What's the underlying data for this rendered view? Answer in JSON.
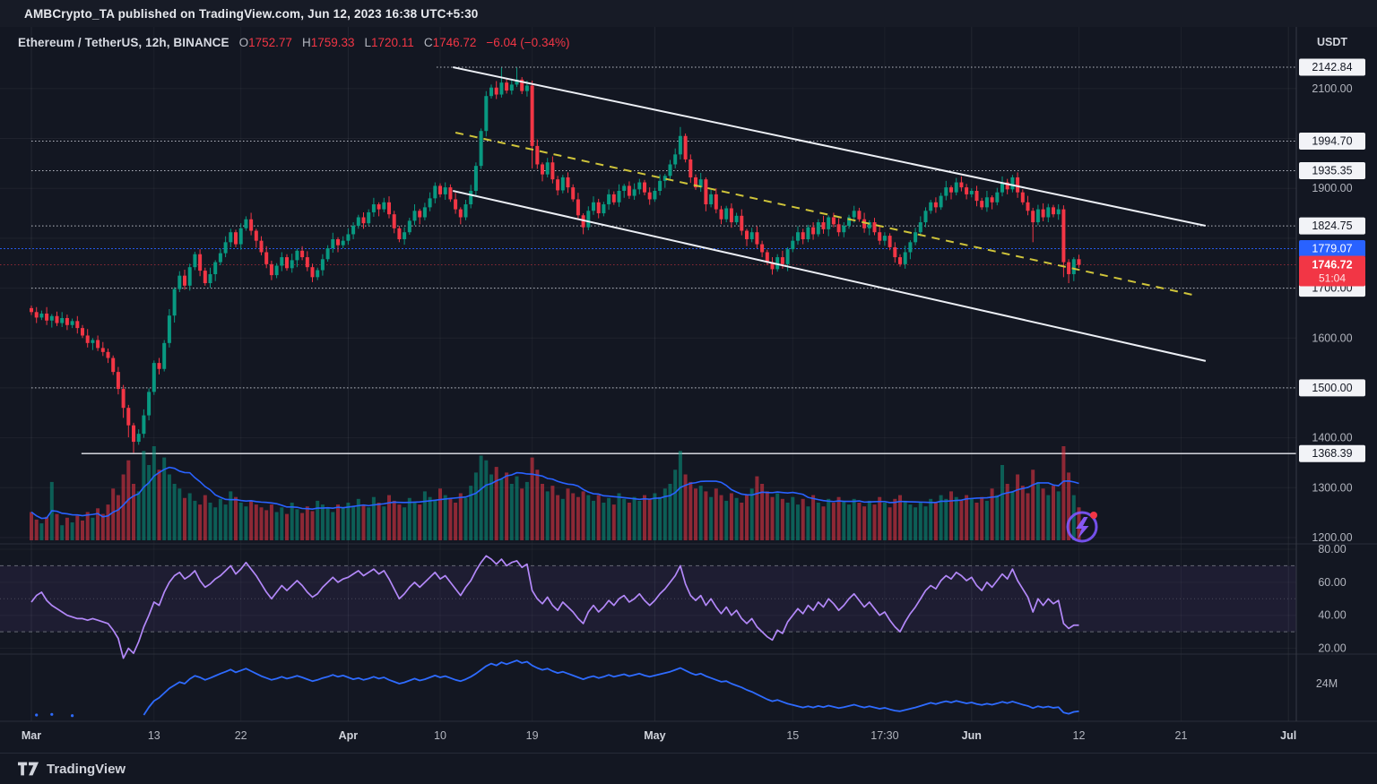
{
  "topbar": {
    "text": "AMBCrypto_TA published on TradingView.com, Jun 12, 2023 16:38 UTC+5:30"
  },
  "legend": {
    "title": "Ethereum / TetherUS, 12h, BINANCE",
    "o_label": "O",
    "o": "1752.77",
    "h_label": "H",
    "h": "1759.33",
    "l_label": "L",
    "l": "1720.11",
    "c_label": "C",
    "c": "1746.72",
    "change": "−6.04 (−0.34%)"
  },
  "price_axis": {
    "currency": "USDT"
  },
  "footer": {
    "brand": "TradingView"
  },
  "watermark": {
    "circle_color": "#7e57ff",
    "bolt_color": "#8c5cff",
    "dot_color": "#f23645"
  },
  "chart_data": {
    "type": "candlestick",
    "title": "Ethereum / TetherUS 12h BINANCE",
    "price_gridlines": [
      2100,
      2000,
      1900,
      1800,
      1700,
      1600,
      1500,
      1400,
      1300,
      1200
    ],
    "axis_ticks_gray": [
      "2100.00",
      "1900.00",
      "1600.00",
      "1400.00",
      "1300.00",
      "1200.00"
    ],
    "axis_ticks_gray_values": [
      2100,
      1900,
      1600,
      1400,
      1300,
      1200
    ],
    "levels": [
      {
        "price": 2142.84,
        "label": "2142.84",
        "from_index": 79.3,
        "style": "dotted",
        "badge": "white"
      },
      {
        "price": 1994.7,
        "label": "1994.70",
        "from_index": 0,
        "style": "dotted",
        "badge": "white"
      },
      {
        "price": 1935.35,
        "label": "1935.35",
        "from_index": 0,
        "style": "dotted",
        "badge": "white"
      },
      {
        "price": 1824.75,
        "label": "1824.75",
        "from_index": 0,
        "style": "dotted",
        "badge": "white"
      },
      {
        "price": 1700.0,
        "label": "1700.00",
        "from_index": 0,
        "style": "dotted",
        "badge": "white"
      },
      {
        "price": 1500.0,
        "label": "1500.00",
        "from_index": 0,
        "style": "dotted",
        "badge": "white"
      },
      {
        "price": 1368.39,
        "label": "1368.39",
        "from_index": 9.8,
        "style": "solid",
        "badge": "white"
      }
    ],
    "blue_level": {
      "price": 1779.07,
      "label": "1779.07",
      "color": "#2962ff"
    },
    "current_price": {
      "price": 1746.72,
      "label": "1746.72",
      "countdown": "51:04",
      "color": "#f23645"
    },
    "time_ticks": [
      {
        "label": "Mar",
        "i": 0,
        "month": true
      },
      {
        "label": "13",
        "i": 24,
        "month": false
      },
      {
        "label": "22",
        "i": 41,
        "month": false
      },
      {
        "label": "Apr",
        "i": 62,
        "month": true
      },
      {
        "label": "10",
        "i": 80,
        "month": false
      },
      {
        "label": "19",
        "i": 98,
        "month": false
      },
      {
        "label": "May",
        "i": 122,
        "month": true
      },
      {
        "label": "15",
        "i": 149,
        "month": false
      },
      {
        "label": "17:30",
        "i": 167,
        "month": false
      },
      {
        "label": "Jun",
        "i": 184,
        "month": true
      },
      {
        "label": "12",
        "i": 205,
        "month": false
      },
      {
        "label": "21",
        "i": 225,
        "month": false
      },
      {
        "label": "Jul",
        "i": 246,
        "month": true
      }
    ],
    "candles": {
      "up_color": "#089981",
      "down_color": "#f23645",
      "first_open": 1660,
      "closes": [
        1652,
        1641,
        1649,
        1635,
        1644,
        1630,
        1640,
        1626,
        1634,
        1620,
        1605,
        1590,
        1596,
        1580,
        1572,
        1560,
        1532,
        1498,
        1460,
        1425,
        1392,
        1408,
        1445,
        1492,
        1550,
        1538,
        1590,
        1645,
        1698,
        1725,
        1705,
        1742,
        1768,
        1735,
        1710,
        1728,
        1752,
        1770,
        1792,
        1812,
        1788,
        1820,
        1838,
        1815,
        1795,
        1772,
        1748,
        1726,
        1745,
        1762,
        1740,
        1756,
        1775,
        1762,
        1742,
        1722,
        1736,
        1758,
        1780,
        1798,
        1786,
        1795,
        1808,
        1825,
        1842,
        1830,
        1852,
        1868,
        1858,
        1872,
        1848,
        1820,
        1798,
        1812,
        1835,
        1855,
        1842,
        1862,
        1880,
        1905,
        1888,
        1902,
        1878,
        1858,
        1842,
        1868,
        1895,
        1945,
        2015,
        2085,
        2102,
        2088,
        2112,
        2096,
        2108,
        2118,
        2095,
        2106,
        1985,
        1948,
        1928,
        1952,
        1918,
        1896,
        1922,
        1902,
        1878,
        1846,
        1822,
        1855,
        1872,
        1850,
        1868,
        1888,
        1872,
        1895,
        1905,
        1885,
        1898,
        1912,
        1892,
        1878,
        1895,
        1915,
        1925,
        1948,
        1968,
        2005,
        1958,
        1922,
        1902,
        1918,
        1868,
        1888,
        1858,
        1838,
        1860,
        1832,
        1845,
        1815,
        1798,
        1812,
        1788,
        1772,
        1752,
        1738,
        1762,
        1748,
        1778,
        1795,
        1812,
        1798,
        1822,
        1808,
        1832,
        1818,
        1842,
        1828,
        1812,
        1825,
        1842,
        1855,
        1838,
        1820,
        1832,
        1812,
        1795,
        1805,
        1782,
        1762,
        1748,
        1772,
        1792,
        1812,
        1832,
        1855,
        1872,
        1862,
        1885,
        1902,
        1892,
        1912,
        1902,
        1888,
        1895,
        1875,
        1862,
        1882,
        1872,
        1892,
        1912,
        1898,
        1922,
        1892,
        1872,
        1855,
        1832,
        1858,
        1842,
        1862,
        1848,
        1858,
        1752,
        1728,
        1758,
        1746.72
      ],
      "wick_high_pattern": [
        5,
        10,
        6,
        13,
        4,
        9,
        12,
        7
      ],
      "wick_low_pattern": [
        6,
        11,
        5,
        9,
        14,
        6,
        8,
        10
      ],
      "wick_overrides": {
        "18": [
          8,
          20
        ],
        "19": [
          6,
          24
        ],
        "20": [
          5,
          22
        ],
        "92": [
          30,
          6
        ],
        "95": [
          24,
          5
        ],
        "98": [
          10,
          45
        ],
        "127": [
          18,
          10
        ],
        "196": [
          6,
          40
        ],
        "202": [
          8,
          30
        ],
        "203": [
          6,
          18
        ]
      }
    },
    "volume": {
      "up_color": "rgba(8,153,129,0.55)",
      "down_color": "rgba(242,54,69,0.55)",
      "ma_color": "#2962ff",
      "ma_window": 10,
      "values": [
        30,
        22,
        18,
        25,
        62,
        28,
        16,
        24,
        19,
        26,
        21,
        30,
        24,
        34,
        28,
        38,
        55,
        48,
        70,
        85,
        60,
        52,
        95,
        80,
        100,
        75,
        88,
        70,
        60,
        55,
        45,
        50,
        42,
        38,
        48,
        40,
        35,
        44,
        38,
        52,
        46,
        40,
        36,
        42,
        38,
        35,
        32,
        38,
        30,
        35,
        28,
        40,
        33,
        29,
        36,
        31,
        42,
        38,
        34,
        30,
        38,
        35,
        40,
        36,
        44,
        38,
        35,
        46,
        40,
        36,
        48,
        42,
        38,
        35,
        45,
        40,
        38,
        52,
        46,
        42,
        55,
        48,
        44,
        40,
        50,
        45,
        58,
        72,
        90,
        85,
        70,
        78,
        65,
        72,
        60,
        68,
        55,
        62,
        88,
        75,
        60,
        52,
        58,
        48,
        44,
        55,
        50,
        46,
        52,
        48,
        42,
        48,
        40,
        45,
        38,
        50,
        44,
        40,
        46,
        42,
        48,
        44,
        50,
        46,
        55,
        60,
        75,
        95,
        70,
        62,
        55,
        58,
        52,
        46,
        55,
        48,
        42,
        50,
        45,
        40,
        48,
        55,
        68,
        60,
        52,
        46,
        50,
        44,
        40,
        46,
        38,
        44,
        36,
        48,
        40,
        36,
        44,
        40,
        46,
        42,
        38,
        44,
        40,
        36,
        42,
        38,
        46,
        40,
        35,
        44,
        48,
        42,
        38,
        35,
        40,
        36,
        44,
        40,
        48,
        44,
        52,
        46,
        42,
        48,
        44,
        40,
        46,
        42,
        55,
        48,
        80,
        60,
        52,
        70,
        58,
        50,
        75,
        62,
        55,
        48,
        58,
        52,
        100,
        72,
        48,
        35
      ]
    },
    "rsi": {
      "color": "#b388f9",
      "band_fill": "rgba(126,87,194,0.10)",
      "upper": 70,
      "lower": 30,
      "mid": 50,
      "ticks": [
        "80.00",
        "60.00",
        "40.00",
        "20.00"
      ],
      "tick_values": [
        80,
        60,
        40,
        20
      ],
      "values": [
        48,
        52,
        54,
        49,
        46,
        44,
        42,
        40,
        39,
        38,
        38,
        37,
        38,
        37,
        36,
        35,
        31,
        26,
        14,
        20,
        17,
        24,
        33,
        40,
        48,
        46,
        54,
        60,
        64,
        66,
        62,
        64,
        67,
        61,
        57,
        59,
        62,
        64,
        67,
        70,
        65,
        68,
        72,
        68,
        64,
        59,
        54,
        50,
        54,
        58,
        55,
        58,
        61,
        58,
        54,
        51,
        53,
        57,
        60,
        63,
        60,
        62,
        63,
        65,
        67,
        64,
        66,
        68,
        65,
        67,
        62,
        56,
        50,
        53,
        57,
        60,
        57,
        60,
        63,
        66,
        62,
        64,
        60,
        56,
        52,
        57,
        61,
        67,
        72,
        76,
        74,
        71,
        74,
        70,
        72,
        73,
        69,
        71,
        55,
        50,
        47,
        51,
        46,
        43,
        48,
        45,
        42,
        38,
        35,
        42,
        46,
        42,
        45,
        49,
        46,
        50,
        52,
        48,
        50,
        53,
        49,
        46,
        49,
        53,
        56,
        60,
        64,
        70,
        59,
        52,
        49,
        52,
        46,
        50,
        45,
        41,
        45,
        40,
        43,
        38,
        35,
        38,
        33,
        30,
        27,
        25,
        31,
        29,
        36,
        40,
        44,
        41,
        46,
        43,
        48,
        45,
        50,
        47,
        43,
        46,
        50,
        53,
        49,
        45,
        48,
        44,
        40,
        42,
        37,
        33,
        30,
        36,
        41,
        45,
        50,
        55,
        58,
        56,
        61,
        64,
        62,
        66,
        64,
        61,
        63,
        58,
        55,
        60,
        57,
        61,
        65,
        62,
        68,
        61,
        56,
        51,
        42,
        50,
        46,
        50,
        47,
        49,
        35,
        32,
        34,
        34
      ]
    },
    "blue_indicator": {
      "color": "#2e6bff",
      "tick_label": "24M",
      "tick_value": 24,
      "start_dots": [
        [
          1,
          14
        ],
        [
          4,
          14.2
        ],
        [
          8,
          13.8
        ]
      ],
      "values": [
        null,
        null,
        null,
        null,
        null,
        null,
        null,
        null,
        null,
        null,
        null,
        null,
        null,
        null,
        null,
        null,
        null,
        null,
        null,
        null,
        null,
        null,
        14,
        16.5,
        18.5,
        19.5,
        21,
        22.5,
        23.5,
        24.5,
        24,
        25.5,
        26.5,
        26,
        25.2,
        25.8,
        26.5,
        27.2,
        27.8,
        28.5,
        27.6,
        28.2,
        28.8,
        28,
        27.2,
        26.4,
        25.8,
        25.2,
        25.6,
        26.2,
        25.6,
        26,
        26.5,
        26,
        25.4,
        24.8,
        25.2,
        25.8,
        26.2,
        26.8,
        26.2,
        26.6,
        26,
        25.4,
        25.8,
        25.2,
        25.6,
        26.2,
        25.6,
        26,
        25.2,
        24.6,
        24,
        24.4,
        25,
        25.6,
        25,
        25.4,
        26,
        26.6,
        26,
        26.4,
        25.8,
        25.2,
        24.8,
        25.4,
        26.2,
        27.2,
        28.4,
        29.6,
        30.4,
        29.8,
        30.8,
        30.2,
        30.8,
        31.4,
        30.6,
        31,
        29.8,
        29,
        28.4,
        28.8,
        28,
        27.4,
        27.8,
        27.2,
        26.6,
        26,
        25.4,
        26,
        26.4,
        25.8,
        26.2,
        26.8,
        26.2,
        26.6,
        27,
        26.4,
        26.8,
        27.2,
        26.6,
        26.2,
        26.6,
        27,
        27.4,
        27.8,
        28.4,
        29,
        28.2,
        27.4,
        26.8,
        27.2,
        26.4,
        25.8,
        25.2,
        24.6,
        24.8,
        24,
        23.4,
        22.8,
        22,
        21.4,
        20.6,
        19.8,
        19,
        18.4,
        18.8,
        18.2,
        17.6,
        17.2,
        16.8,
        16.4,
        16.8,
        16.4,
        16.9,
        16.5,
        17,
        16.6,
        16.2,
        16.5,
        16.9,
        17.3,
        16.8,
        16.4,
        16.8,
        16.4,
        16,
        16.3,
        15.8,
        15.4,
        15.2,
        15.6,
        16,
        16.4,
        16.9,
        17.4,
        17.9,
        17.5,
        18,
        18.4,
        18,
        18.5,
        18.1,
        17.7,
        18,
        17.5,
        17.2,
        17.6,
        17.3,
        17.7,
        18.2,
        17.8,
        18.3,
        17.8,
        17.3,
        16.9,
        16.2,
        16.8,
        16.4,
        16.7,
        16.3,
        16.5,
        14.8,
        14.4,
        15,
        15.2
      ]
    },
    "trendlines": [
      {
        "i1": 82.5,
        "p1": 2142.8,
        "i2": 229.8,
        "p2": 1824.9,
        "color": "#eceff5",
        "dash": null,
        "width": 2,
        "name": "channel-top"
      },
      {
        "i1": 83.0,
        "p1": 2011.7,
        "i2": 228.0,
        "p2": 1684.9,
        "color": "#cfc43a",
        "dash": "9,7",
        "width": 2,
        "name": "channel-mid"
      },
      {
        "i1": 82.5,
        "p1": 1895.0,
        "i2": 229.8,
        "p2": 1554.0,
        "color": "#eceff5",
        "dash": null,
        "width": 2,
        "name": "channel-bottom"
      }
    ]
  }
}
